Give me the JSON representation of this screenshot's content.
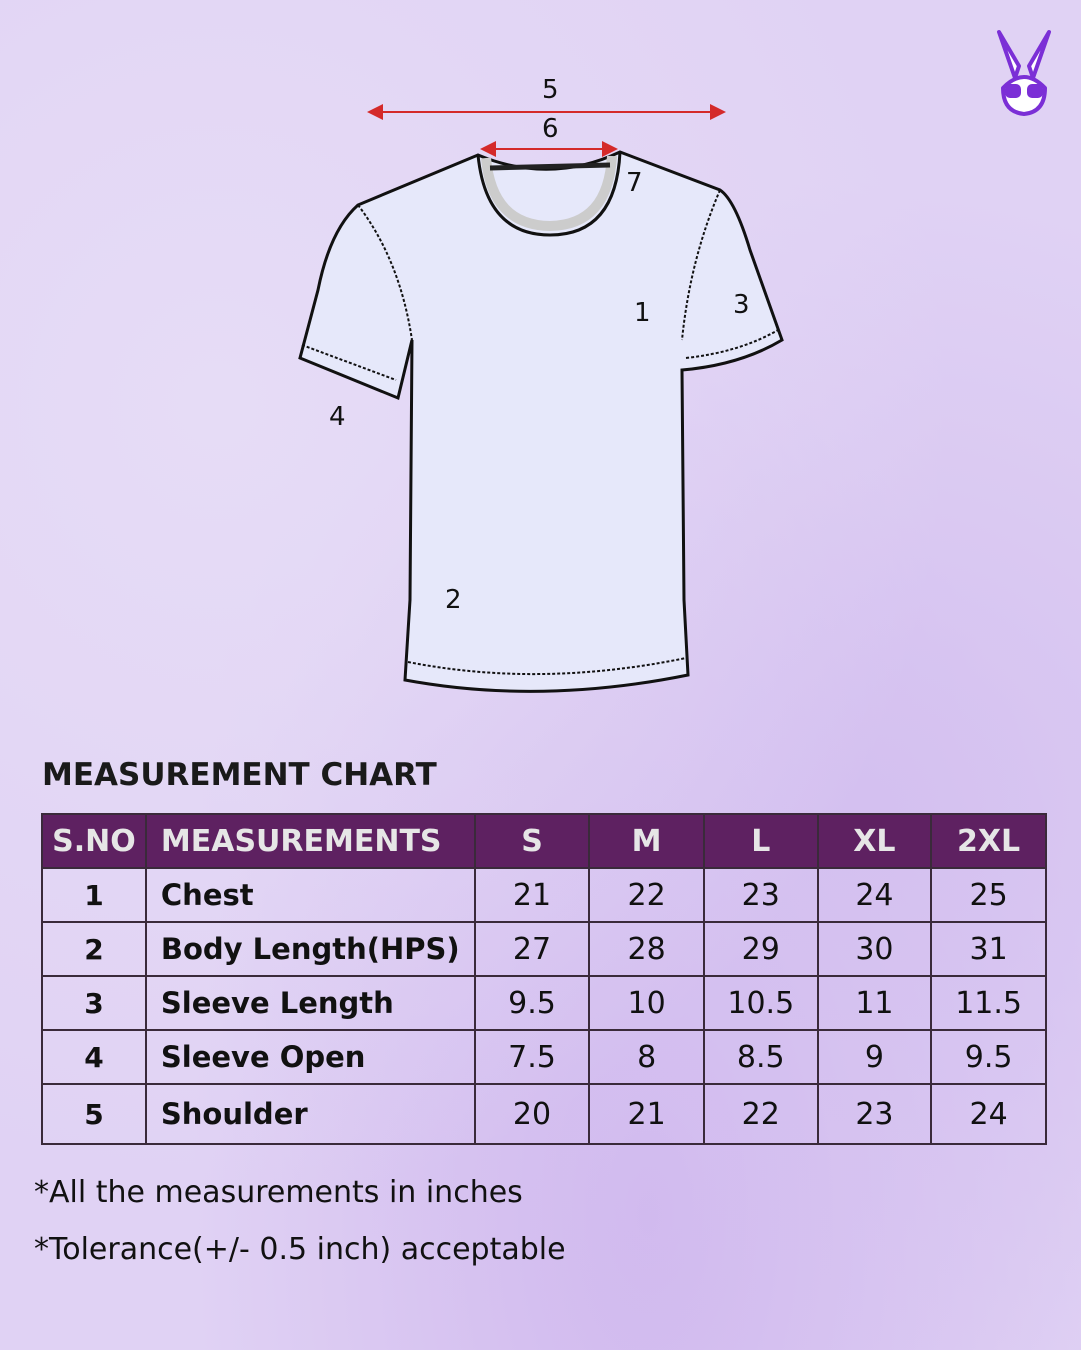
{
  "diagram": {
    "labels": {
      "chest": "1",
      "body_length": "2",
      "sleeve_length": "3",
      "sleeve_open": "4",
      "shoulder": "5",
      "neck_width": "6",
      "neck_depth": "7"
    }
  },
  "logo": {
    "name": "bunny-with-sunglasses-logo",
    "color": "#7b2fd6"
  },
  "chart": {
    "title": "MEASUREMENT CHART",
    "headers": [
      "S.NO",
      "MEASUREMENTS",
      "S",
      "M",
      "L",
      "XL",
      "2XL"
    ],
    "header_color": "#5e2161",
    "rows": [
      {
        "sno": "1",
        "name": "Chest",
        "values": [
          "21",
          "22",
          "23",
          "24",
          "25"
        ]
      },
      {
        "sno": "2",
        "name": "Body Length(HPS)",
        "values": [
          "27",
          "28",
          "29",
          "30",
          "31"
        ]
      },
      {
        "sno": "3",
        "name": "Sleeve Length",
        "values": [
          "9.5",
          "10",
          "10.5",
          "11",
          "11.5"
        ]
      },
      {
        "sno": "4",
        "name": "Sleeve Open",
        "values": [
          "7.5",
          "8",
          "8.5",
          "9",
          "9.5"
        ]
      },
      {
        "sno": "5",
        "name": "Shoulder",
        "values": [
          "20",
          "21",
          "22",
          "23",
          "24"
        ]
      }
    ]
  },
  "notes": [
    "*All the measurements in inches",
    "*Tolerance(+/- 0.5 inch) acceptable"
  ]
}
